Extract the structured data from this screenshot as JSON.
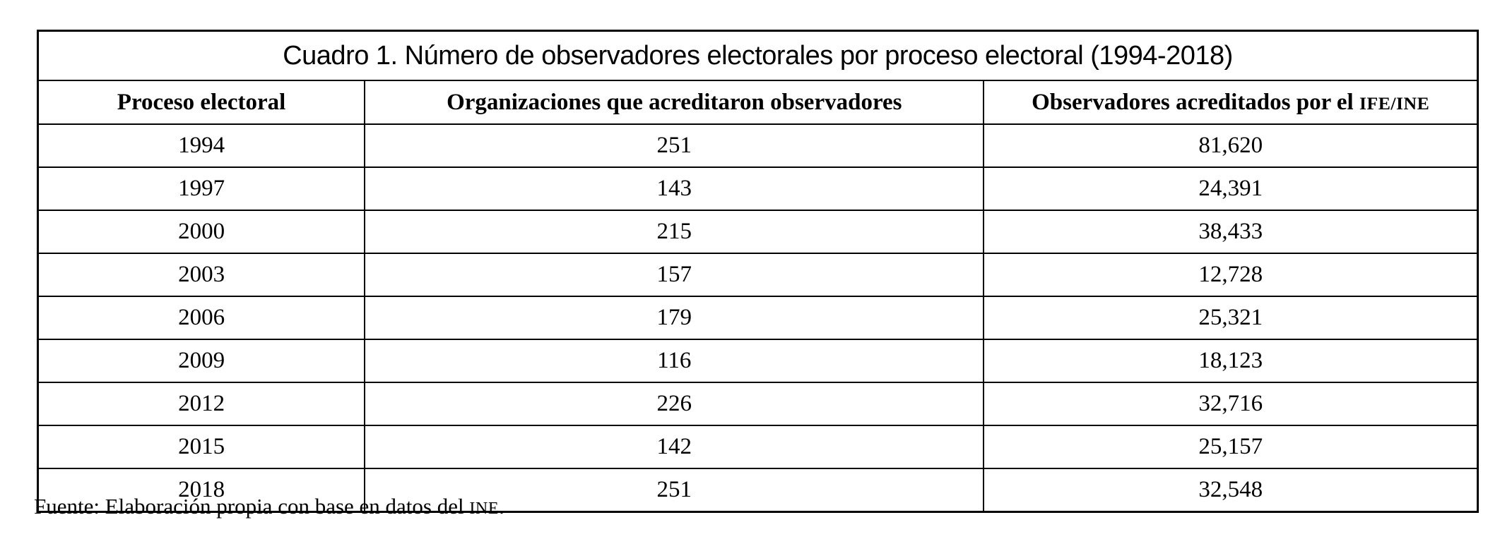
{
  "table": {
    "title": "Cuadro 1. Número de observadores electorales por proceso electoral (1994-2018)",
    "columns": [
      {
        "label": "Proceso electoral"
      },
      {
        "label": "Organizaciones que acreditaron observadores"
      },
      {
        "label_prefix": "Observadores acreditados por el ",
        "label_smallcaps": "IFE/INE"
      }
    ],
    "rows": [
      {
        "year": "1994",
        "orgs": "251",
        "observers": "81,620"
      },
      {
        "year": "1997",
        "orgs": "143",
        "observers": "24,391"
      },
      {
        "year": "2000",
        "orgs": "215",
        "observers": "38,433"
      },
      {
        "year": "2003",
        "orgs": "157",
        "observers": "12,728"
      },
      {
        "year": "2006",
        "orgs": "179",
        "observers": "25,321"
      },
      {
        "year": "2009",
        "orgs": "116",
        "observers": "18,123"
      },
      {
        "year": "2012",
        "orgs": "226",
        "observers": "32,716"
      },
      {
        "year": "2015",
        "orgs": "142",
        "observers": "25,157"
      },
      {
        "year": "2018",
        "orgs": "251",
        "observers": "32,548"
      }
    ]
  },
  "footer": {
    "prefix": "Fuente: Elaboración propia con base en datos del ",
    "smallcaps": "INE",
    "suffix": "."
  },
  "colors": {
    "text": "#000000",
    "background": "#ffffff",
    "border": "#000000"
  },
  "chart_data": {
    "type": "table",
    "title": "Cuadro 1. Número de observadores electorales por proceso electoral (1994-2018)",
    "categories": [
      "1994",
      "1997",
      "2000",
      "2003",
      "2006",
      "2009",
      "2012",
      "2015",
      "2018"
    ],
    "series": [
      {
        "name": "Organizaciones que acreditaron observadores",
        "values": [
          251,
          143,
          215,
          157,
          179,
          116,
          226,
          142,
          251
        ]
      },
      {
        "name": "Observadores acreditados por el IFE/INE",
        "values": [
          81620,
          24391,
          38433,
          12728,
          25321,
          18123,
          32716,
          25157,
          32548
        ]
      }
    ]
  }
}
